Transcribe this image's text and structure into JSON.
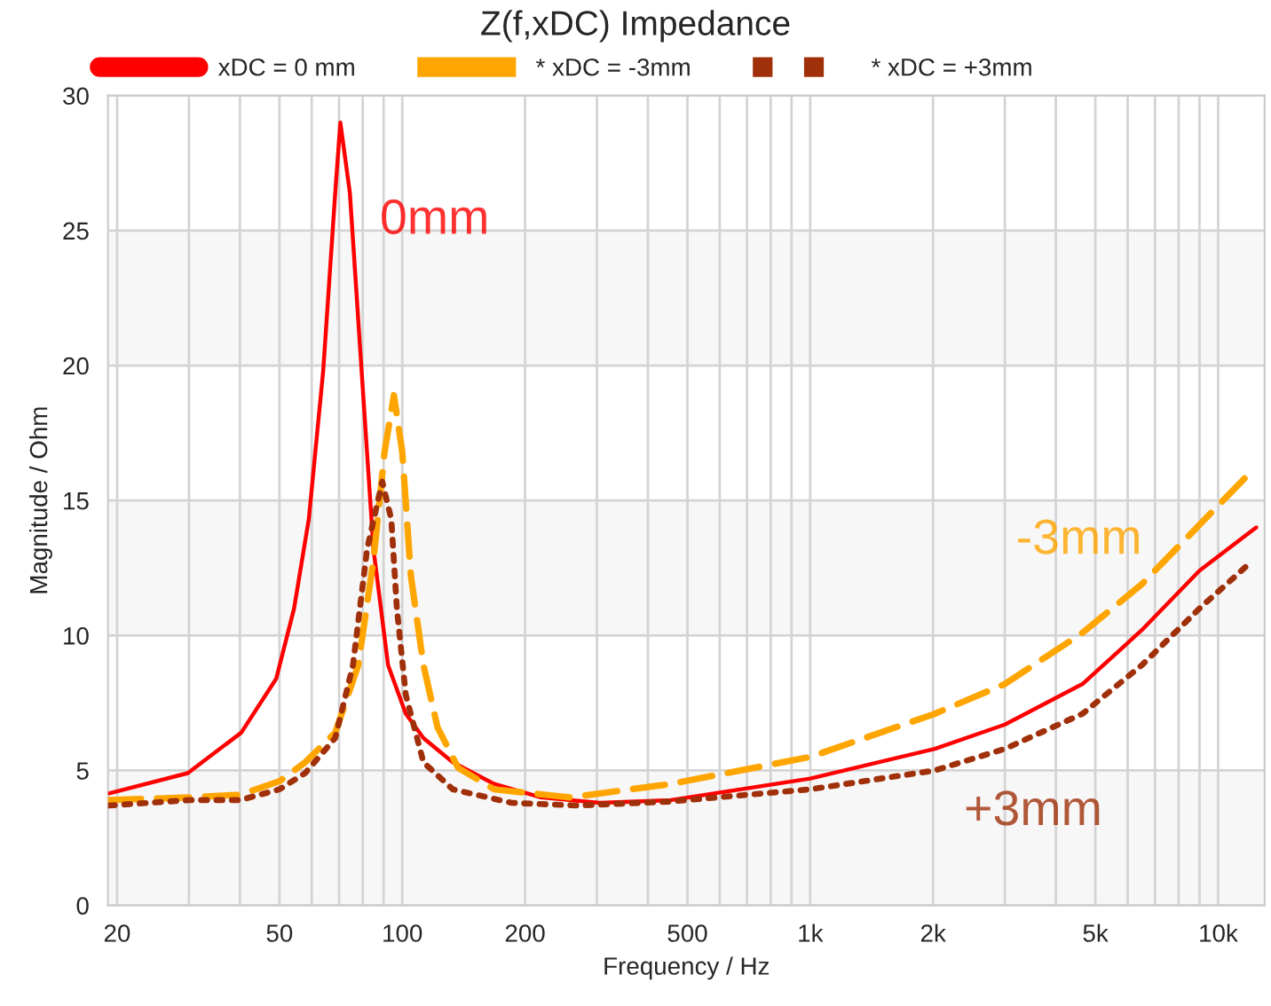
{
  "chart_data": {
    "type": "line",
    "title": "Z(f,xDC) Impedance",
    "xlabel": "Frequency / Hz",
    "ylabel": "Magnitude / Ohm",
    "log": "x",
    "xlim": [
      19,
      13000
    ],
    "ylim": [
      0,
      30
    ],
    "xticks": [
      {
        "value": 20,
        "label": "20"
      },
      {
        "value": 30,
        "label": null
      },
      {
        "value": 40,
        "label": null
      },
      {
        "value": 50,
        "label": "50"
      },
      {
        "value": 60,
        "label": null
      },
      {
        "value": 70,
        "label": null
      },
      {
        "value": 80,
        "label": null
      },
      {
        "value": 90,
        "label": null
      },
      {
        "value": 100,
        "label": "100"
      },
      {
        "value": 200,
        "label": "200"
      },
      {
        "value": 300,
        "label": null
      },
      {
        "value": 400,
        "label": null
      },
      {
        "value": 500,
        "label": "500"
      },
      {
        "value": 600,
        "label": null
      },
      {
        "value": 700,
        "label": null
      },
      {
        "value": 800,
        "label": null
      },
      {
        "value": 900,
        "label": null
      },
      {
        "value": 1000,
        "label": "1k"
      },
      {
        "value": 2000,
        "label": "2k"
      },
      {
        "value": 3000,
        "label": null
      },
      {
        "value": 4000,
        "label": null
      },
      {
        "value": 5000,
        "label": "5k"
      },
      {
        "value": 6000,
        "label": null
      },
      {
        "value": 7000,
        "label": null
      },
      {
        "value": 8000,
        "label": null
      },
      {
        "value": 9000,
        "label": null
      },
      {
        "value": 10000,
        "label": "10k"
      }
    ],
    "yticks": [
      0,
      5,
      10,
      15,
      20,
      25,
      30
    ],
    "grid": true,
    "legend": "top",
    "bands": [
      {
        "axis": "y",
        "from": 0,
        "to": 5,
        "color": "#f7f7f7"
      },
      {
        "axis": "y",
        "from": 10,
        "to": 15,
        "color": "#f7f7f7"
      },
      {
        "axis": "y",
        "from": 20,
        "to": 25,
        "color": "#f7f7f7"
      }
    ],
    "series": [
      {
        "name": "xDC = 0 mm",
        "color": "#ff0000",
        "line_style": "solid",
        "x": [
          19.1,
          29.8,
          40.3,
          49.1,
          54.3,
          59,
          64,
          68.5,
          70.5,
          74.4,
          79.5,
          85,
          92.3,
          102,
          112.7,
          133,
          168,
          219,
          305,
          455,
          1000,
          2020,
          3000,
          4650,
          6500,
          9000,
          12400
        ],
        "values": [
          4.15,
          4.9,
          6.4,
          8.4,
          11.0,
          14.3,
          19.8,
          26.4,
          29.0,
          26.4,
          19.8,
          13.2,
          8.9,
          7.1,
          6.2,
          5.3,
          4.5,
          4.0,
          3.8,
          3.9,
          4.7,
          5.8,
          6.7,
          8.2,
          10.2,
          12.4,
          14.0
        ]
      },
      {
        "name": "* xDC = -3mm",
        "color": "#ffa500",
        "line_style": "dashed",
        "x": [
          19.1,
          30,
          40,
          50,
          57.8,
          68.5,
          78,
          85,
          90.5,
          95.4,
          100,
          105,
          112.7,
          122,
          137,
          168,
          258,
          455,
          1000,
          2020,
          3000,
          4650,
          6500,
          9000,
          12100
        ],
        "values": [
          3.9,
          4.0,
          4.1,
          4.6,
          5.3,
          6.4,
          8.9,
          12.8,
          16.8,
          18.9,
          16.8,
          12.2,
          8.9,
          6.6,
          5.1,
          4.3,
          4.0,
          4.5,
          5.5,
          7.1,
          8.2,
          10.1,
          11.9,
          14.1,
          16.1
        ]
      },
      {
        "name": "* xDC = +3mm",
        "color": "#a0300a",
        "line_style": "dotted",
        "x": [
          19.1,
          30,
          40,
          50,
          57.8,
          68.5,
          75.7,
          82,
          89.3,
          94,
          97,
          102,
          112.7,
          133,
          185,
          268,
          455,
          1000,
          2020,
          3000,
          4650,
          6500,
          9000,
          11800
        ],
        "values": [
          3.7,
          3.9,
          3.9,
          4.3,
          4.9,
          6.2,
          8.9,
          13.2,
          15.7,
          14.3,
          11.0,
          7.8,
          5.3,
          4.3,
          3.8,
          3.7,
          3.85,
          4.3,
          5.0,
          5.8,
          7.1,
          8.9,
          11.0,
          12.6
        ]
      }
    ],
    "annotations": [
      "0mm",
      "-3mm",
      "+3mm"
    ]
  }
}
